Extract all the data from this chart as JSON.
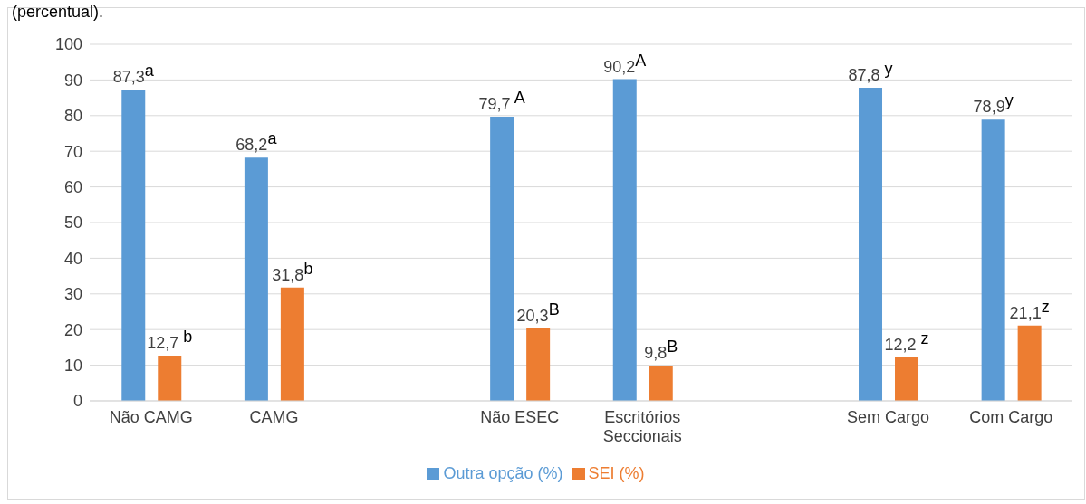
{
  "chart_data": {
    "type": "bar",
    "title": "(percentual).",
    "categories": [
      "Não CAMG",
      "CAMG",
      null,
      "Não ESEC",
      "Escritórios Seccionais",
      null,
      "Sem Cargo",
      "Com Cargo"
    ],
    "series": [
      {
        "name": "Outra opção (%)",
        "color": "#5b9bd5",
        "values": [
          87.3,
          68.2,
          null,
          79.7,
          90.2,
          null,
          87.8,
          78.9
        ],
        "value_labels": [
          "87,3$^{a}$",
          "68,2$^{a}$",
          null,
          "79,7 $^{A}$",
          "90,2$^{A}$",
          null,
          "87,8 $^{y}$",
          "78,9$^{y}$"
        ]
      },
      {
        "name": "SEI (%)",
        "color": "#ed7d31",
        "values": [
          12.7,
          31.8,
          null,
          20.3,
          9.8,
          null,
          12.2,
          21.1
        ],
        "value_labels": [
          "12,7 $^{b}$",
          "31,8$^{b}$",
          null,
          "20,3$^{B}$",
          "9,8$^{B}$",
          null,
          "12,2 $^{z}$",
          "21,1$^{z}$"
        ]
      }
    ],
    "ylim": [
      0,
      100
    ],
    "yticks": [
      0,
      10,
      20,
      30,
      40,
      50,
      60,
      70,
      80,
      90,
      100
    ],
    "grid": "y",
    "legend": "bottom"
  }
}
